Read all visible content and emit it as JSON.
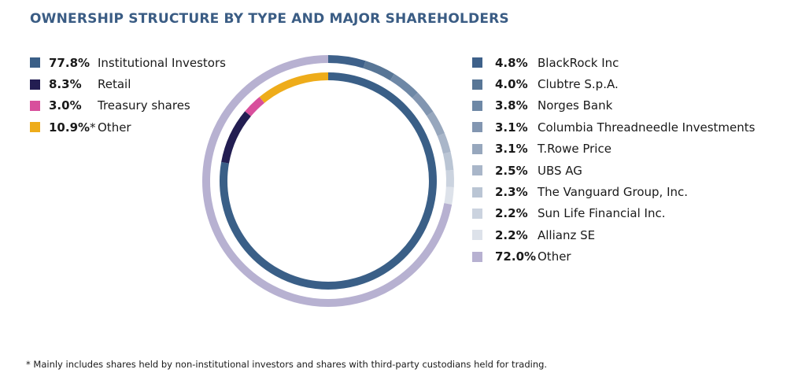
{
  "chart_data": {
    "type": "pie",
    "title": "OWNERSHIP STRUCTURE BY TYPE AND MAJOR SHAREHOLDERS",
    "rings": [
      {
        "ring": "inner",
        "legend_position": "top-left",
        "slices": [
          {
            "label": "77.8%",
            "mark": "",
            "name": "Institutional Investors",
            "value": 77.8,
            "color": "#3a5f87"
          },
          {
            "label": "8.3%",
            "mark": "",
            "name": "Retail",
            "value": 8.3,
            "color": "#231e52"
          },
          {
            "label": "3.0%",
            "mark": "",
            "name": "Treasury shares",
            "value": 3.0,
            "color": "#d84f9c"
          },
          {
            "label": "10.9%",
            "mark": "*",
            "name": "Other",
            "value": 10.9,
            "color": "#eeac1a"
          }
        ]
      },
      {
        "ring": "outer",
        "legend_position": "top-right",
        "slices": [
          {
            "label": "4.8%",
            "mark": "",
            "name": "BlackRock Inc",
            "value": 4.8,
            "color": "#3e618a"
          },
          {
            "label": "4.0%",
            "mark": "",
            "name": "Clubtre S.p.A.",
            "value": 4.0,
            "color": "#587696"
          },
          {
            "label": "3.8%",
            "mark": "",
            "name": "Norges Bank",
            "value": 3.8,
            "color": "#6e88a6"
          },
          {
            "label": "3.1%",
            "mark": "",
            "name": "Columbia Threadneedle Investments",
            "value": 3.1,
            "color": "#8296b1"
          },
          {
            "label": "3.1%",
            "mark": "",
            "name": "T.Rowe Price",
            "value": 3.1,
            "color": "#97a7bd"
          },
          {
            "label": "2.5%",
            "mark": "",
            "name": "UBS AG",
            "value": 2.5,
            "color": "#a9b6c9"
          },
          {
            "label": "2.3%",
            "mark": "",
            "name": "The Vanguard Group, Inc.",
            "value": 2.3,
            "color": "#bac5d4"
          },
          {
            "label": "2.2%",
            "mark": "",
            "name": "Sun Life Financial Inc.",
            "value": 2.2,
            "color": "#cbd3df"
          },
          {
            "label": "2.2%",
            "mark": "",
            "name": "Allianz SE",
            "value": 2.2,
            "color": "#dde2ea"
          },
          {
            "label": "72.0%",
            "mark": "",
            "name": "Other",
            "value": 72.0,
            "color": "#b7b1d1"
          }
        ]
      }
    ]
  },
  "footnote": "* Mainly includes shares held by non-institutional investors and shares with third-party custodians held for trading."
}
